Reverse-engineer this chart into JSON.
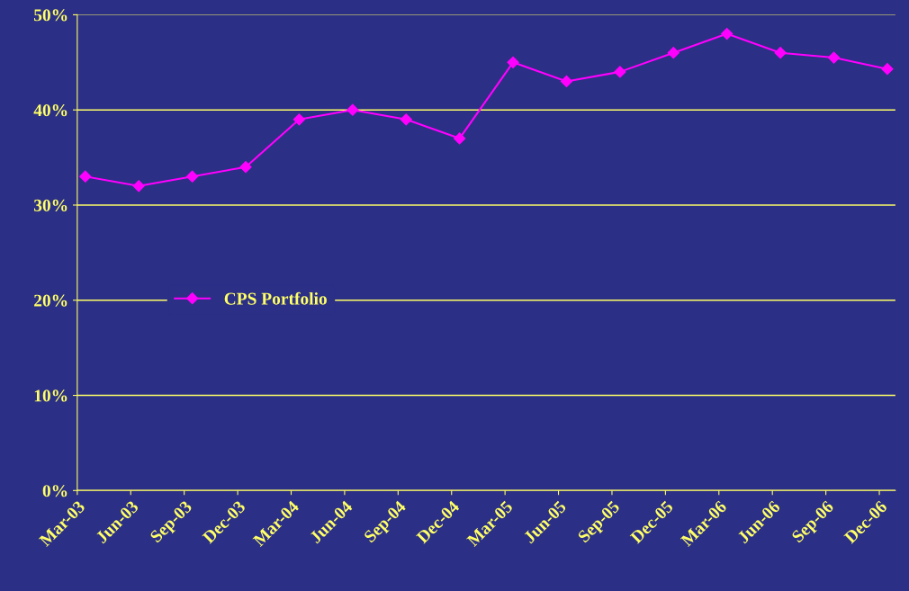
{
  "chart_data": {
    "type": "line",
    "categories": [
      "Mar-03",
      "Jun-03",
      "Sep-03",
      "Dec-03",
      "Mar-04",
      "Jun-04",
      "Sep-04",
      "Dec-04",
      "Mar-05",
      "Jun-05",
      "Sep-05",
      "Dec-05",
      "Mar-06",
      "Jun-06",
      "Sep-06",
      "Dec-06"
    ],
    "series": [
      {
        "name": "CPS Portfolio",
        "color": "#ff00ff",
        "values": [
          33,
          32,
          33,
          34,
          39,
          40,
          39,
          37,
          45,
          43,
          44,
          46,
          48,
          46,
          45.5,
          44.3
        ]
      }
    ],
    "ylim": [
      0,
      50
    ],
    "yticks": [
      {
        "value": 0,
        "label": "0%"
      },
      {
        "value": 10,
        "label": "10%"
      },
      {
        "value": 20,
        "label": "20%"
      },
      {
        "value": 30,
        "label": "30%"
      },
      {
        "value": 40,
        "label": "40%"
      },
      {
        "value": 50,
        "label": "50%"
      }
    ],
    "grid": "y",
    "legend": "center left",
    "marker": "diamond",
    "line_style": "solid"
  }
}
